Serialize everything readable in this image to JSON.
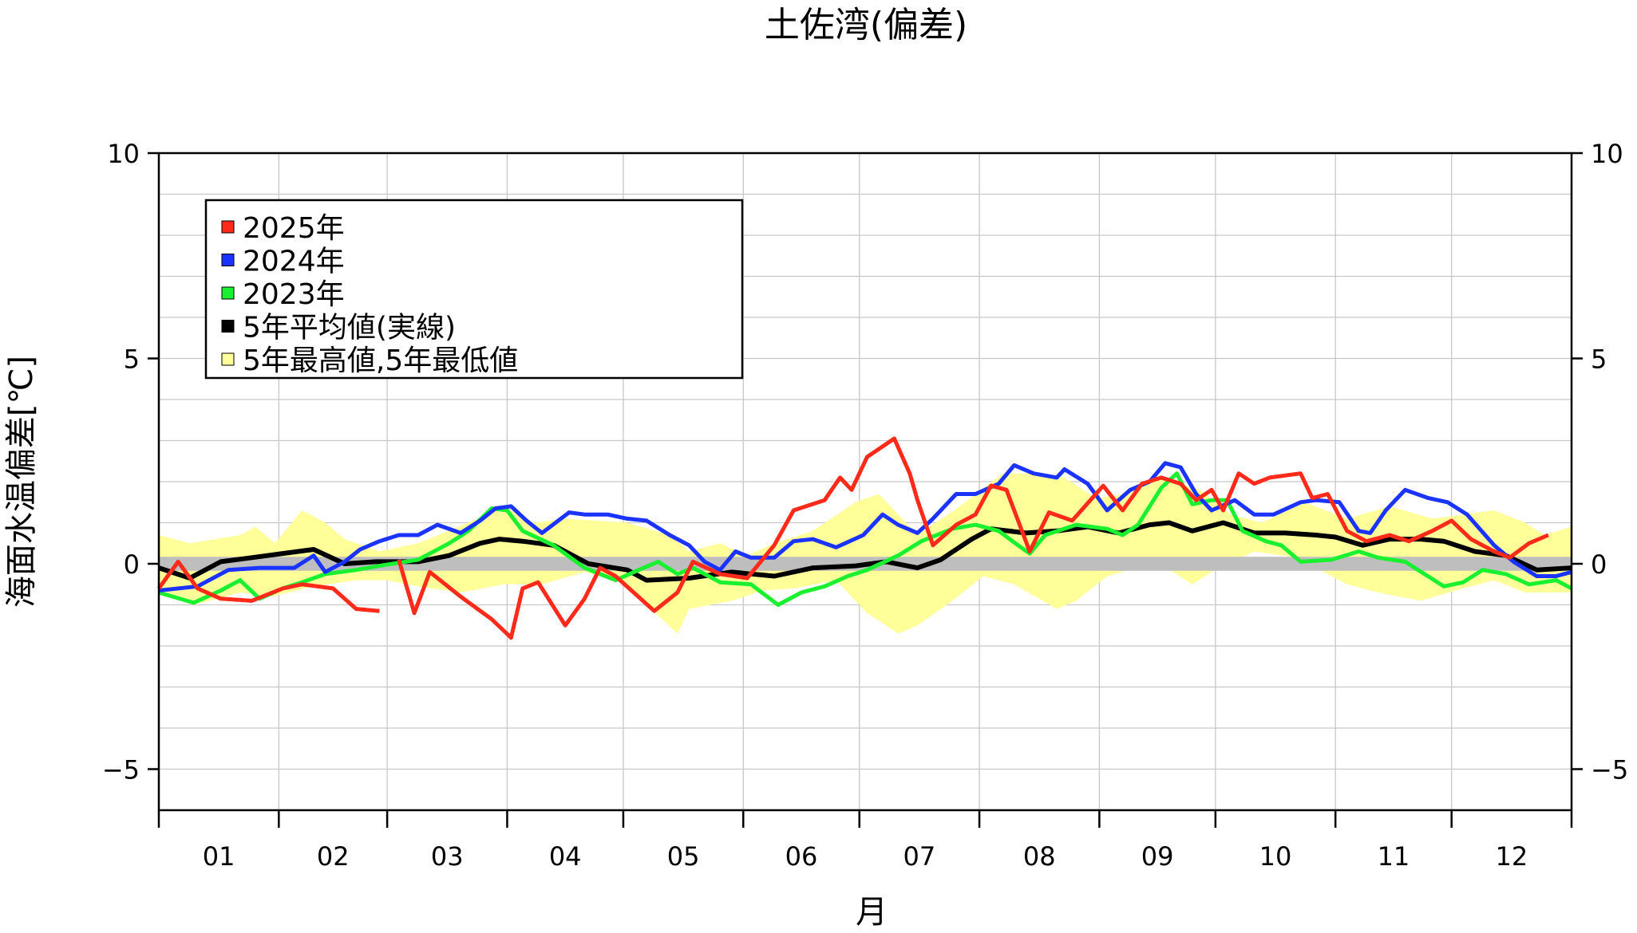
{
  "chart_data": {
    "type": "line",
    "title": "土佐湾(偏差)",
    "xlabel": "月",
    "ylabel": "海面水温偏差[℃]",
    "xlim": [
      0,
      365
    ],
    "ylim": [
      -6,
      10
    ],
    "yticks": [
      10,
      5,
      0,
      -5
    ],
    "ytick_labels": [
      "10",
      "5",
      "0",
      "−5"
    ],
    "month_starts": [
      0,
      31,
      59,
      90,
      120,
      151,
      181,
      212,
      243,
      273,
      304,
      334,
      365
    ],
    "month_labels": [
      "01",
      "02",
      "03",
      "04",
      "05",
      "06",
      "07",
      "08",
      "09",
      "10",
      "11",
      "12"
    ],
    "grid": true,
    "legend_position": "top-left",
    "zero_band": [
      -0.17,
      0.17
    ],
    "colors": {
      "2025": "#ff2a1a",
      "2024": "#1a33ff",
      "2023": "#19f030",
      "avg": "#000000",
      "band": "#ffff99",
      "zero": "#bebebe"
    },
    "legend": [
      {
        "label": "2025年",
        "color": "#ff2a1a"
      },
      {
        "label": "2024年",
        "color": "#1a33ff"
      },
      {
        "label": "2023年",
        "color": "#19f030"
      },
      {
        "label": "5年平均値(実線)",
        "color": "#000000"
      },
      {
        "label": "5年最高値,5年最低値",
        "color": "#ffff99"
      }
    ],
    "band": {
      "upper": {
        "x": [
          0,
          8,
          21,
          25,
          30,
          37,
          43,
          48,
          57,
          67,
          80,
          89,
          97,
          105,
          121,
          132,
          137,
          145,
          152,
          159,
          169,
          180,
          186,
          191,
          196,
          207,
          218,
          226,
          234,
          242,
          250,
          258,
          269,
          277,
          285,
          296,
          307,
          318,
          329,
          337,
          345,
          353,
          358,
          365
        ],
        "y": [
          0.7,
          0.5,
          0.7,
          0.9,
          0.5,
          1.3,
          1.0,
          0.6,
          0.3,
          0.5,
          1.0,
          1.4,
          1.0,
          1.1,
          1.0,
          0.7,
          0.3,
          0.5,
          0.2,
          0.5,
          0.8,
          1.5,
          1.7,
          1.2,
          0.7,
          1.4,
          2.2,
          2.2,
          2.1,
          1.6,
          1.7,
          2.1,
          1.8,
          1.2,
          1.0,
          1.5,
          1.1,
          1.4,
          1.1,
          1.2,
          1.3,
          1.0,
          0.7,
          0.9
        ]
      },
      "lower": {
        "x": [
          0,
          9,
          21,
          29,
          40,
          51,
          59,
          67,
          78,
          89,
          99,
          110,
          121,
          126,
          134,
          137,
          148,
          156,
          164,
          175,
          183,
          191,
          196,
          205,
          213,
          221,
          232,
          237,
          245,
          258,
          267,
          272,
          283,
          294,
          307,
          315,
          326,
          337,
          345,
          353,
          365
        ],
        "y": [
          -0.65,
          -1.0,
          -0.7,
          -0.8,
          -0.55,
          -0.4,
          -0.4,
          -0.55,
          -0.7,
          -0.5,
          -0.5,
          -0.2,
          -0.5,
          -1.0,
          -1.7,
          -1.1,
          -0.9,
          -0.65,
          -0.6,
          -0.4,
          -1.2,
          -1.7,
          -1.5,
          -0.9,
          -0.3,
          -0.5,
          -1.1,
          -0.9,
          -0.3,
          0.05,
          -0.5,
          -0.2,
          0.3,
          0.15,
          -0.5,
          -0.7,
          -0.9,
          -0.6,
          -0.4,
          -0.7,
          -0.7
        ]
      }
    },
    "series": [
      {
        "name": "5年平均値",
        "key": "avg",
        "x": [
          0,
          8,
          16,
          24,
          32,
          40,
          48,
          56,
          67,
          75,
          83,
          88,
          94,
          102,
          111,
          121,
          126,
          137,
          148,
          159,
          169,
          180,
          188,
          196,
          202,
          210,
          215,
          224,
          232,
          240,
          248,
          256,
          261,
          267,
          275,
          283,
          291,
          299,
          304,
          311,
          318,
          326,
          332,
          340,
          348,
          356,
          365
        ],
        "y": [
          -0.1,
          -0.35,
          0.05,
          0.15,
          0.25,
          0.35,
          0,
          0.05,
          0.05,
          0.2,
          0.5,
          0.6,
          0.55,
          0.45,
          0,
          -0.15,
          -0.4,
          -0.35,
          -0.2,
          -0.3,
          -0.1,
          -0.05,
          0.05,
          -0.1,
          0.1,
          0.6,
          0.85,
          0.75,
          0.8,
          0.9,
          0.75,
          0.95,
          1.0,
          0.8,
          1.0,
          0.75,
          0.75,
          0.7,
          0.65,
          0.45,
          0.6,
          0.6,
          0.55,
          0.3,
          0.2,
          -0.15,
          -0.1
        ]
      },
      {
        "name": "2023年",
        "key": "2023",
        "x": [
          0,
          9,
          16,
          21,
          26,
          32,
          37,
          43,
          51,
          57,
          67,
          75,
          80,
          86,
          90,
          94,
          102,
          110,
          118,
          124,
          129,
          134,
          138,
          145,
          153,
          160,
          166,
          172,
          178,
          183,
          191,
          197,
          205,
          211,
          217,
          222,
          225,
          229,
          237,
          245,
          249,
          253,
          259,
          263,
          267,
          272,
          276,
          280,
          286,
          290,
          295,
          303,
          310,
          315,
          322,
          332,
          337,
          342,
          348,
          354,
          361,
          365
        ],
        "y": [
          -0.7,
          -0.95,
          -0.65,
          -0.4,
          -0.85,
          -0.6,
          -0.45,
          -0.25,
          -0.15,
          -0.05,
          0.1,
          0.5,
          0.8,
          1.35,
          1.3,
          0.8,
          0.45,
          -0.1,
          -0.4,
          -0.15,
          0.05,
          -0.25,
          -0.1,
          -0.45,
          -0.5,
          -1.0,
          -0.7,
          -0.55,
          -0.3,
          -0.15,
          0.2,
          0.55,
          0.85,
          0.95,
          0.8,
          0.45,
          0.25,
          0.7,
          0.95,
          0.85,
          0.7,
          0.95,
          1.85,
          2.2,
          1.45,
          1.55,
          1.55,
          0.8,
          0.55,
          0.45,
          0.05,
          0.1,
          0.3,
          0.15,
          0.05,
          -0.55,
          -0.45,
          -0.15,
          -0.25,
          -0.5,
          -0.4,
          -0.6
        ]
      },
      {
        "name": "2024年",
        "key": "2024",
        "x": [
          0,
          10,
          18,
          26,
          35,
          40,
          43,
          48,
          52,
          57,
          62,
          67,
          72,
          78,
          83,
          87,
          91,
          95,
          99,
          106,
          110,
          116,
          121,
          126,
          132,
          137,
          141,
          145,
          149,
          153,
          159,
          164,
          169,
          175,
          182,
          187,
          191,
          196,
          200,
          206,
          211,
          217,
          221,
          226,
          232,
          234,
          240,
          245,
          251,
          256,
          260,
          264,
          268,
          272,
          278,
          283,
          288,
          295,
          299,
          305,
          310,
          313,
          317,
          322,
          328,
          333,
          338,
          345,
          350,
          356,
          361,
          365
        ],
        "y": [
          -0.65,
          -0.55,
          -0.15,
          -0.1,
          -0.1,
          0.2,
          -0.2,
          0.05,
          0.35,
          0.55,
          0.7,
          0.7,
          0.95,
          0.75,
          1.05,
          1.35,
          1.4,
          1.05,
          0.75,
          1.25,
          1.2,
          1.2,
          1.1,
          1.05,
          0.7,
          0.45,
          0.05,
          -0.15,
          0.3,
          0.15,
          0.15,
          0.55,
          0.6,
          0.4,
          0.7,
          1.2,
          0.95,
          0.75,
          1.1,
          1.7,
          1.7,
          1.95,
          2.4,
          2.2,
          2.1,
          2.3,
          1.95,
          1.3,
          1.8,
          2.0,
          2.45,
          2.35,
          1.7,
          1.3,
          1.55,
          1.2,
          1.2,
          1.5,
          1.55,
          1.5,
          0.8,
          0.75,
          1.3,
          1.8,
          1.6,
          1.5,
          1.2,
          0.45,
          0.05,
          -0.3,
          -0.3,
          -0.2
        ]
      },
      {
        "name": "2025年",
        "key": "2025",
        "x": [
          0,
          5,
          10,
          16,
          24,
          32,
          37,
          45,
          51,
          57,
          60,
          62,
          66,
          70,
          78,
          86,
          91,
          94,
          98,
          105,
          110,
          114,
          118,
          128,
          134,
          138,
          145,
          152,
          159,
          164,
          172,
          176,
          179,
          183,
          190,
          194,
          196,
          200,
          206,
          211,
          215,
          219,
          225,
          230,
          236,
          244,
          249,
          254,
          259,
          264,
          268,
          272,
          275,
          279,
          283,
          287,
          295,
          298,
          302,
          307,
          312,
          318,
          323,
          329,
          334,
          339,
          345,
          349,
          354,
          359
        ],
        "y": [
          -0.6,
          0.05,
          -0.6,
          -0.85,
          -0.9,
          -0.6,
          -0.5,
          -0.6,
          -1.1,
          -1.15,
          null,
          0.1,
          -1.2,
          -0.2,
          -0.8,
          -1.35,
          -1.8,
          -0.6,
          -0.45,
          -1.5,
          -0.85,
          -0.1,
          -0.3,
          -1.15,
          -0.7,
          0.05,
          -0.25,
          -0.35,
          0.45,
          1.3,
          1.55,
          2.1,
          1.8,
          2.6,
          3.05,
          2.2,
          1.55,
          0.45,
          0.95,
          1.2,
          1.9,
          1.8,
          0.3,
          1.25,
          1.05,
          1.9,
          1.3,
          1.95,
          2.1,
          1.95,
          1.55,
          1.8,
          1.3,
          2.2,
          1.95,
          2.1,
          2.2,
          1.6,
          1.7,
          0.8,
          0.55,
          0.7,
          0.55,
          0.8,
          1.05,
          0.6,
          0.3,
          0.15,
          0.5,
          0.7
        ]
      }
    ]
  }
}
